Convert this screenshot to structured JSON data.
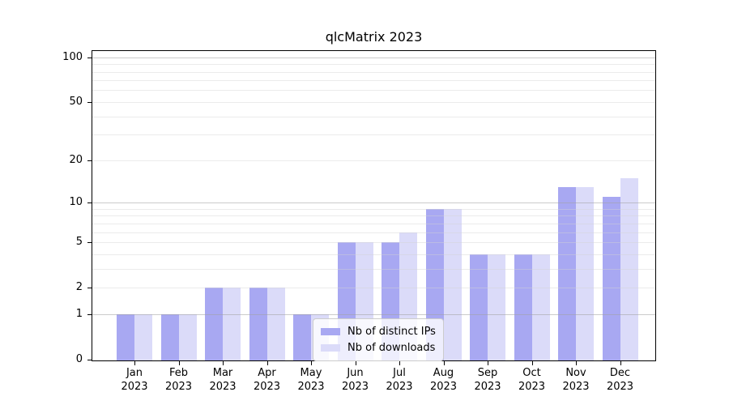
{
  "title": "qlcMatrix 2023",
  "legend": {
    "entries": [
      {
        "label": "Nb of distinct IPs",
        "color": "#a8a8f2"
      },
      {
        "label": "Nb of downloads",
        "color": "#dbdbf9"
      }
    ]
  },
  "colors": {
    "series_distinct_ips": "#a8a8f2",
    "series_downloads": "#dbdbf9",
    "major_grid": "rgba(160,160,160,0.55)",
    "minor_grid": "rgba(210,210,210,0.45)",
    "axis": "#000000",
    "background": "#ffffff"
  },
  "chart_data": {
    "type": "bar",
    "title": "qlcMatrix 2023",
    "categories": [
      "Jan 2023",
      "Feb 2023",
      "Mar 2023",
      "Apr 2023",
      "May 2023",
      "Jun 2023",
      "Jul 2023",
      "Aug 2023",
      "Sep 2023",
      "Oct 2023",
      "Nov 2023",
      "Dec 2023"
    ],
    "series": [
      {
        "name": "Nb of distinct IPs",
        "color": "#a8a8f2",
        "values": [
          1,
          1,
          2,
          2,
          1,
          5,
          5,
          9,
          4,
          4,
          13,
          11
        ]
      },
      {
        "name": "Nb of downloads",
        "color": "#dbdbf9",
        "values": [
          1,
          1,
          2,
          2,
          1,
          5,
          6,
          9,
          4,
          4,
          13,
          15
        ]
      }
    ],
    "xlabel": "",
    "ylabel": "",
    "yscale": "log1p",
    "ylim": [
      0,
      112
    ],
    "yticks": [
      0,
      1,
      2,
      5,
      10,
      20,
      50,
      100
    ],
    "major_gridlines": [
      1,
      10,
      100
    ],
    "minor_gridlines": [
      2,
      3,
      4,
      5,
      6,
      7,
      8,
      9,
      20,
      30,
      40,
      50,
      60,
      70,
      80,
      90
    ],
    "grid": true,
    "legend_position": "lower center-left inside plot"
  }
}
